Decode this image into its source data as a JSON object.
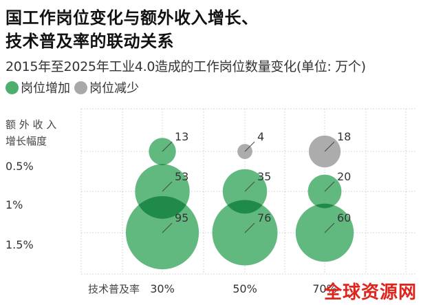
{
  "header": {
    "title_line1": "国工作岗位变化与额外收入增长、",
    "title_line2": "技术普及率的联动关系",
    "subtitle": "2015年至2025年工业4.0造成的工作岗位数量变化(单位: 万个)"
  },
  "colors": {
    "increase": "#4caf6e",
    "decrease": "#a8a8a8",
    "overlap": "#1f8a4a",
    "grid": "#c8c8c8",
    "watermark": "#e0241b"
  },
  "legend": [
    {
      "label": "岗位增加",
      "color": "#4caf6e"
    },
    {
      "label": "岗位减少",
      "color": "#a8a8a8"
    }
  ],
  "chart_data": {
    "type": "scatter",
    "encoding": "bubble",
    "x_axis_label": "技术普及率",
    "x_categories": [
      "30%",
      "50%",
      "70%"
    ],
    "y_axis_label": [
      "额 外 收 入",
      "增长幅度"
    ],
    "y_categories": [
      "0.5%",
      "1%",
      "1.5%"
    ],
    "grid": true,
    "points": [
      {
        "x": "30%",
        "y": "0.5%",
        "value": 13,
        "kind": "increase"
      },
      {
        "x": "30%",
        "y": "1%",
        "value": 53,
        "kind": "increase"
      },
      {
        "x": "30%",
        "y": "1.5%",
        "value": 95,
        "kind": "increase"
      },
      {
        "x": "50%",
        "y": "0.5%",
        "value": 4,
        "kind": "decrease"
      },
      {
        "x": "50%",
        "y": "1%",
        "value": 35,
        "kind": "increase"
      },
      {
        "x": "50%",
        "y": "1.5%",
        "value": 76,
        "kind": "increase"
      },
      {
        "x": "70%",
        "y": "0.5%",
        "value": 18,
        "kind": "decrease"
      },
      {
        "x": "70%",
        "y": "1%",
        "value": 20,
        "kind": "increase"
      },
      {
        "x": "70%",
        "y": "1.5%",
        "value": 60,
        "kind": "increase"
      }
    ]
  },
  "watermark": "全球资源网"
}
